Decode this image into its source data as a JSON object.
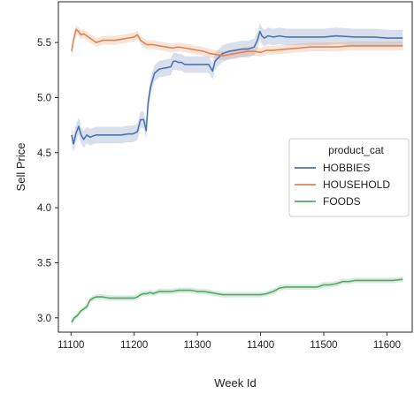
{
  "chart_data": {
    "type": "line",
    "title": "",
    "xlabel": "Week Id",
    "ylabel": "Sell Price",
    "xlim": [
      11080,
      11640
    ],
    "ylim": [
      2.87,
      5.87
    ],
    "xticks": [
      11100,
      11200,
      11300,
      11400,
      11500,
      11600
    ],
    "yticks": [
      3.0,
      3.5,
      4.0,
      4.5,
      5.0,
      5.5
    ],
    "grid": false,
    "legend": {
      "title": "product_cat",
      "placement": "center-right"
    },
    "series": [
      {
        "name": "HOBBIES",
        "color": "#4c72b0",
        "x": [
          11101,
          11104,
          11108,
          11112,
          11116,
          11120,
          11125,
          11130,
          11140,
          11150,
          11160,
          11170,
          11180,
          11190,
          11198,
          11205,
          11210,
          11215,
          11219,
          11222,
          11226,
          11232,
          11240,
          11250,
          11258,
          11262,
          11266,
          11270,
          11275,
          11280,
          11290,
          11300,
          11310,
          11318,
          11324,
          11328,
          11333,
          11340,
          11350,
          11360,
          11370,
          11380,
          11390,
          11395,
          11399,
          11402,
          11406,
          11412,
          11420,
          11430,
          11440,
          11460,
          11480,
          11500,
          11520,
          11550,
          11580,
          11600,
          11625
        ],
        "y": [
          4.66,
          4.58,
          4.68,
          4.74,
          4.66,
          4.62,
          4.66,
          4.64,
          4.66,
          4.66,
          4.66,
          4.66,
          4.66,
          4.67,
          4.67,
          4.69,
          4.8,
          4.8,
          4.7,
          4.95,
          5.1,
          5.22,
          5.26,
          5.27,
          5.28,
          5.33,
          5.33,
          5.32,
          5.32,
          5.3,
          5.3,
          5.3,
          5.3,
          5.3,
          5.24,
          5.33,
          5.36,
          5.4,
          5.42,
          5.43,
          5.44,
          5.44,
          5.46,
          5.52,
          5.6,
          5.56,
          5.54,
          5.56,
          5.55,
          5.56,
          5.55,
          5.55,
          5.55,
          5.55,
          5.56,
          5.55,
          5.55,
          5.54,
          5.54
        ]
      },
      {
        "name": "HOUSEHOLD",
        "color": "#dd8452",
        "x": [
          11101,
          11104,
          11108,
          11112,
          11116,
          11120,
          11125,
          11130,
          11140,
          11150,
          11160,
          11170,
          11180,
          11190,
          11200,
          11205,
          11210,
          11215,
          11220,
          11230,
          11240,
          11250,
          11260,
          11270,
          11280,
          11290,
          11300,
          11310,
          11320,
          11330,
          11340,
          11350,
          11360,
          11370,
          11380,
          11390,
          11400,
          11410,
          11420,
          11440,
          11460,
          11480,
          11500,
          11520,
          11540,
          11560,
          11580,
          11600,
          11625
        ],
        "y": [
          5.42,
          5.52,
          5.62,
          5.6,
          5.57,
          5.58,
          5.56,
          5.54,
          5.5,
          5.52,
          5.52,
          5.52,
          5.53,
          5.54,
          5.55,
          5.57,
          5.52,
          5.5,
          5.48,
          5.48,
          5.47,
          5.46,
          5.45,
          5.46,
          5.45,
          5.44,
          5.43,
          5.42,
          5.4,
          5.39,
          5.38,
          5.39,
          5.4,
          5.41,
          5.42,
          5.42,
          5.41,
          5.43,
          5.43,
          5.44,
          5.45,
          5.46,
          5.46,
          5.46,
          5.47,
          5.47,
          5.47,
          5.47,
          5.47
        ]
      },
      {
        "name": "FOODS",
        "color": "#55a868",
        "x": [
          11101,
          11105,
          11110,
          11115,
          11120,
          11125,
          11130,
          11135,
          11140,
          11150,
          11160,
          11170,
          11180,
          11190,
          11200,
          11205,
          11210,
          11215,
          11220,
          11225,
          11230,
          11240,
          11250,
          11260,
          11270,
          11280,
          11290,
          11300,
          11310,
          11320,
          11330,
          11340,
          11350,
          11360,
          11370,
          11380,
          11390,
          11400,
          11410,
          11420,
          11430,
          11440,
          11450,
          11460,
          11470,
          11480,
          11490,
          11500,
          11510,
          11520,
          11530,
          11540,
          11550,
          11560,
          11570,
          11580,
          11590,
          11600,
          11610,
          11625
        ],
        "y": [
          2.96,
          3.0,
          3.02,
          3.06,
          3.08,
          3.1,
          3.16,
          3.18,
          3.19,
          3.19,
          3.18,
          3.18,
          3.18,
          3.18,
          3.18,
          3.19,
          3.21,
          3.22,
          3.22,
          3.23,
          3.22,
          3.24,
          3.24,
          3.24,
          3.25,
          3.25,
          3.25,
          3.24,
          3.24,
          3.23,
          3.22,
          3.21,
          3.21,
          3.21,
          3.21,
          3.21,
          3.21,
          3.21,
          3.22,
          3.24,
          3.27,
          3.28,
          3.28,
          3.28,
          3.28,
          3.28,
          3.28,
          3.3,
          3.3,
          3.31,
          3.33,
          3.33,
          3.34,
          3.34,
          3.34,
          3.34,
          3.34,
          3.34,
          3.34,
          3.35
        ]
      }
    ]
  }
}
